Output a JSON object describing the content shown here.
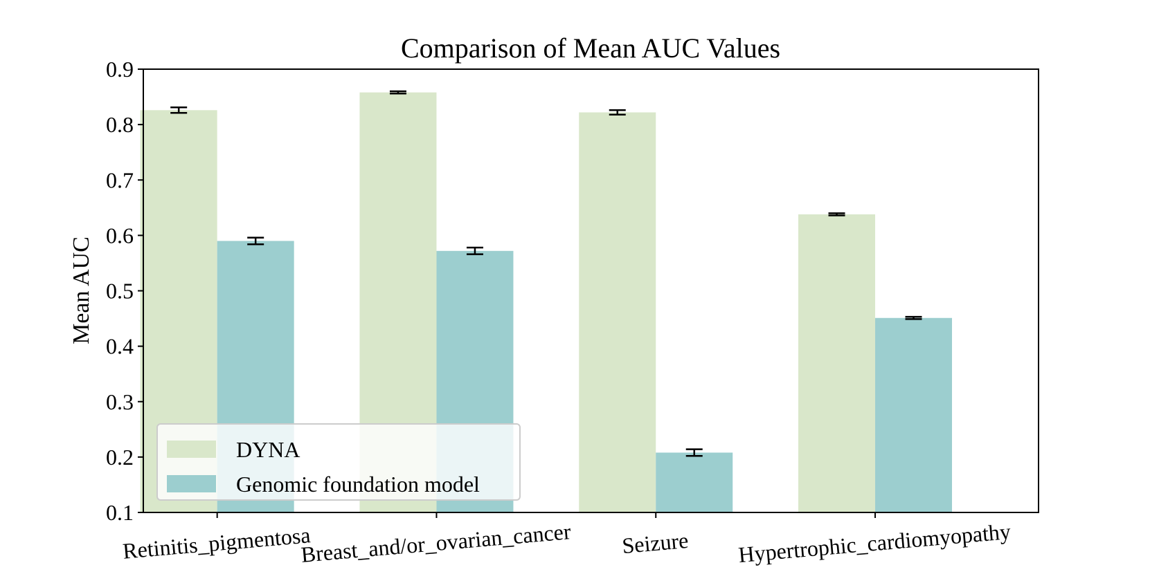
{
  "chart_data": {
    "type": "bar",
    "title": "Comparison of Mean AUC Values",
    "xlabel": "",
    "ylabel": "Mean AUC",
    "ylim": [
      0.1,
      0.9
    ],
    "yticks": [
      0.1,
      0.2,
      0.3,
      0.4,
      0.5,
      0.6,
      0.7,
      0.8,
      0.9
    ],
    "categories": [
      "Retinitis_pigmentosa",
      "Breast_and/or_ovarian_cancer",
      "Seizure",
      "Hypertrophic_cardiomyopathy"
    ],
    "series": [
      {
        "name": "DYNA",
        "color": "#d9e7ca",
        "values": [
          0.826,
          0.858,
          0.822,
          0.638
        ],
        "errors": [
          0.005,
          0.002,
          0.004,
          0.002
        ]
      },
      {
        "name": "Genomic foundation model",
        "color": "#9ccecf",
        "values": [
          0.59,
          0.572,
          0.208,
          0.451
        ],
        "errors": [
          0.006,
          0.006,
          0.006,
          0.002
        ]
      }
    ],
    "grid": false,
    "legend": "lower-left",
    "tick_rotation": -5
  }
}
